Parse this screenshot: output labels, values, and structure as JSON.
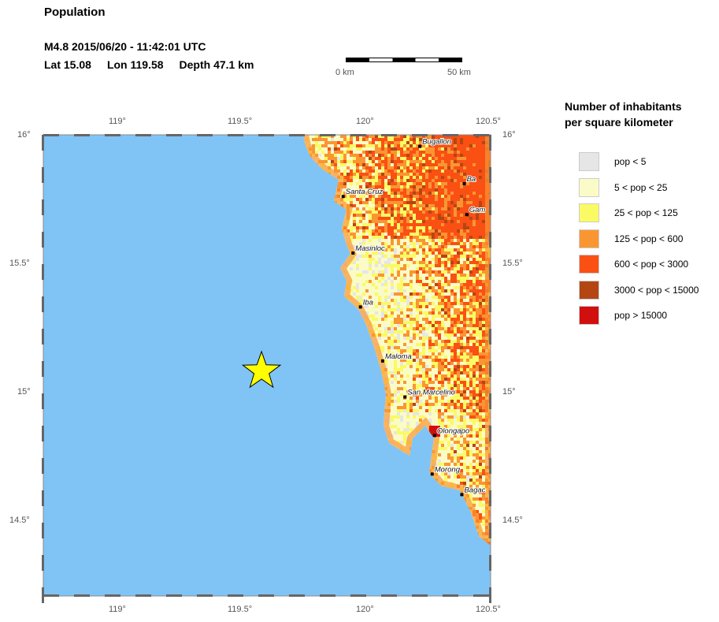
{
  "title": "Population",
  "event": {
    "line1": "M4.8  2015/06/20 - 11:42:01 UTC",
    "lat": "Lat 15.08",
    "lon": "Lon 119.58",
    "depth": "Depth  47.1 km"
  },
  "scale": {
    "start": "0 km",
    "end": "50 km"
  },
  "axes": {
    "lon_top": [
      "119°",
      "119.5°",
      "120°",
      "120.5°"
    ],
    "lon_bottom": [
      "119°",
      "119.5°",
      "120°",
      "120.5°"
    ],
    "lat_left": [
      "16°",
      "15.5°",
      "15°",
      "14.5°"
    ],
    "lat_right": [
      "16°",
      "15.5°",
      "15°",
      "14.5°"
    ]
  },
  "epicenter": {
    "lat": 15.08,
    "lon": 119.58,
    "color": "#ffff00"
  },
  "cities": [
    {
      "name": "Bugallon",
      "lat": 15.955,
      "lon": 120.22
    },
    {
      "name": "Ba",
      "lat": 15.81,
      "lon": 120.4
    },
    {
      "name": "Gam",
      "lat": 15.69,
      "lon": 120.41
    },
    {
      "name": "Santa Cruz",
      "lat": 15.76,
      "lon": 119.91
    },
    {
      "name": "Masinloc",
      "lat": 15.54,
      "lon": 119.95
    },
    {
      "name": "Iba",
      "lat": 15.33,
      "lon": 119.98
    },
    {
      "name": "Maloma",
      "lat": 15.12,
      "lon": 120.07
    },
    {
      "name": "San Marcelino",
      "lat": 14.98,
      "lon": 120.16
    },
    {
      "name": "Olongapo",
      "lat": 14.83,
      "lon": 120.28
    },
    {
      "name": "Morong",
      "lat": 14.68,
      "lon": 120.27
    },
    {
      "name": "Bagac",
      "lat": 14.6,
      "lon": 120.39
    }
  ],
  "legend": {
    "title_line1": "Number of inhabitants",
    "title_line2": "per square kilometer",
    "items": [
      {
        "label": "pop < 5",
        "color": "#e6e6e6"
      },
      {
        "label": "5 < pop < 25",
        "color": "#fbfbc8"
      },
      {
        "label": "25 < pop < 125",
        "color": "#fafa64"
      },
      {
        "label": "125 < pop < 600",
        "color": "#fa9632"
      },
      {
        "label": "600 < pop < 3000",
        "color": "#fa5014"
      },
      {
        "label": "3000 < pop < 15000",
        "color": "#b44614"
      },
      {
        "label": "pop > 15000",
        "color": "#d20f0f"
      }
    ]
  },
  "colors": {
    "water": "#80c4f6"
  }
}
